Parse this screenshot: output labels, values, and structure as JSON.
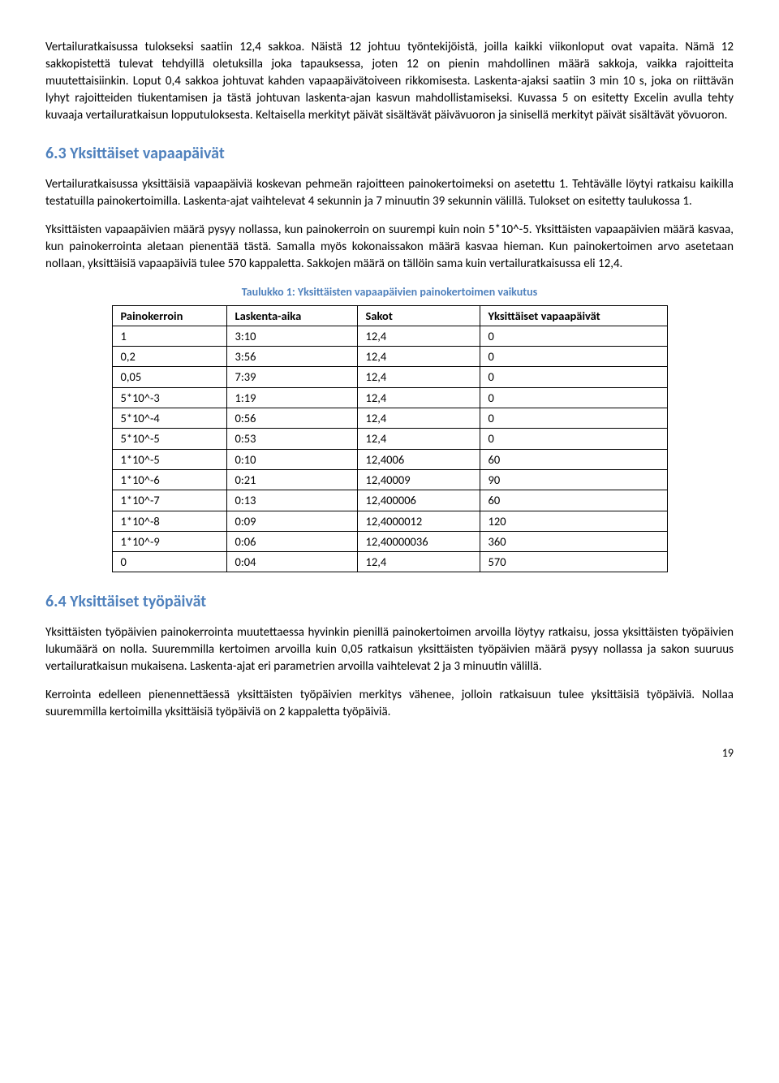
{
  "paragraphs": {
    "p1": "Vertailuratkaisussa tulokseksi saatiin 12,4 sakkoa. Näistä 12 johtuu työntekijöistä, joilla kaikki viikonloput ovat vapaita. Nämä 12 sakkopistettä tulevat tehdyillä oletuksilla joka tapauksessa, joten 12 on pienin mahdollinen määrä sakkoja, vaikka rajoitteita muutettaisiinkin. Loput 0,4 sakkoa johtuvat kahden vapaapäivätoiveen rikkomisesta. Laskenta-ajaksi saatiin 3 min 10 s, joka on riittävän lyhyt rajoitteiden tiukentamisen ja tästä johtuvan laskenta-ajan kasvun mahdollistamiseksi. Kuvassa 5 on esitetty Excelin avulla tehty kuvaaja vertailuratkaisun lopputuloksesta. Keltaisella merkityt päivät sisältävät päivävuoron ja sinisellä merkityt päivät sisältävät yövuoron.",
    "p2": "Vertailuratkaisussa yksittäisiä vapaapäiviä koskevan pehmeän rajoitteen painokertoimeksi on asetettu 1. Tehtävälle löytyi ratkaisu kaikilla testatuilla painokertoimilla. Laskenta-ajat vaihtelevat 4 sekunnin ja 7 minuutin 39 sekunnin välillä. Tulokset on esitetty taulukossa 1.",
    "p3": "Yksittäisten vapaapäivien määrä pysyy nollassa, kun painokerroin on suurempi kuin noin 5*10^-5. Yksittäisten vapaapäivien määrä kasvaa, kun painokerrointa aletaan pienentää tästä. Samalla myös kokonaissakon määrä kasvaa hieman. Kun painokertoimen arvo asetetaan nollaan, yksittäisiä vapaapäiviä tulee 570 kappaletta. Sakkojen määrä on tällöin sama kuin vertailuratkaisussa eli 12,4.",
    "p4": "Yksittäisten työpäivien painokerrointa muutettaessa hyvinkin pienillä painokertoimen arvoilla löytyy ratkaisu, jossa yksittäisten työpäivien lukumäärä on nolla. Suuremmilla kertoimen arvoilla kuin 0,05 ratkaisun yksittäisten työpäivien määrä pysyy nollassa ja sakon suuruus vertailuratkaisun mukaisena. Laskenta-ajat eri parametrien arvoilla vaihtelevat 2 ja 3 minuutin välillä.",
    "p5": "Kerrointa edelleen pienennettäessä yksittäisten työpäivien merkitys vähenee, jolloin ratkaisuun tulee yksittäisiä työpäiviä. Nollaa suuremmilla kertoimilla yksittäisiä työpäiviä on 2 kappaletta työpäiviä."
  },
  "headings": {
    "h63": "6.3   Yksittäiset vapaapäivät",
    "h64": "6.4   Yksittäiset työpäivät"
  },
  "table1": {
    "caption": "Taulukko 1: Yksittäisten vapaapäivien painokertoimen vaikutus",
    "headers": [
      "Painokerroin",
      "Laskenta-aika",
      "Sakot",
      "Yksittäiset vapaapäivät"
    ],
    "rows": [
      [
        "1",
        "3:10",
        "12,4",
        "0"
      ],
      [
        "0,2",
        "3:56",
        "12,4",
        "0"
      ],
      [
        "0,05",
        "7:39",
        "12,4",
        "0"
      ],
      [
        "5*10^-3",
        "1:19",
        "12,4",
        "0"
      ],
      [
        "5*10^-4",
        "0:56",
        "12,4",
        "0"
      ],
      [
        "5*10^-5",
        "0:53",
        "12,4",
        "0"
      ],
      [
        "1*10^-5",
        "0:10",
        "12,4006",
        "60"
      ],
      [
        "1*10^-6",
        "0:21",
        "12,40009",
        "90"
      ],
      [
        "1*10^-7",
        "0:13",
        "12,400006",
        "60"
      ],
      [
        "1*10^-8",
        "0:09",
        "12,4000012",
        "120"
      ],
      [
        "1*10^-9",
        "0:06",
        "12,40000036",
        "360"
      ],
      [
        "0",
        "0:04",
        "12,4",
        "570"
      ]
    ]
  },
  "page_number": "19"
}
